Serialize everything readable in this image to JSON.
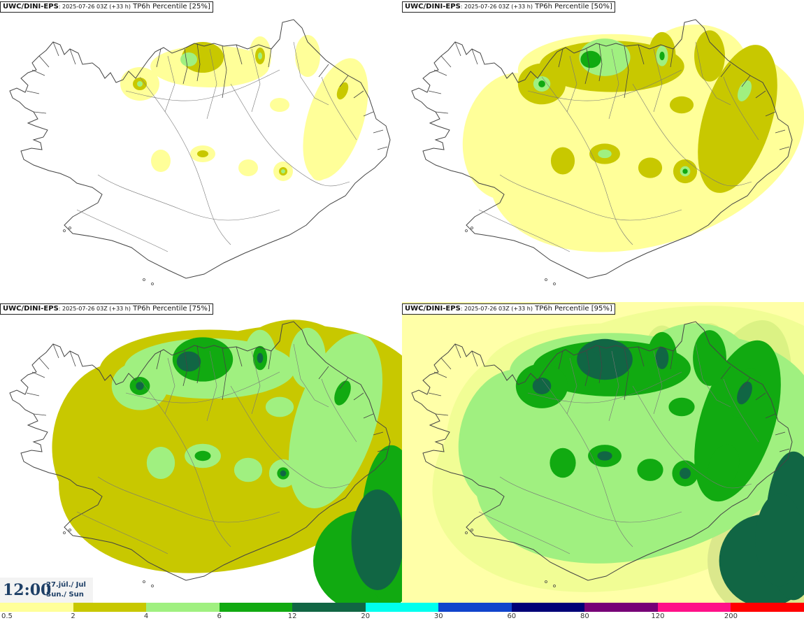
{
  "panels": [
    {
      "model": "UWC/DINI-EPS",
      "run": ": 2025-07-26 03Z (+33 h)",
      "field": " TP6h Percentile [25%]",
      "intensity": 0
    },
    {
      "model": "UWC/DINI-EPS",
      "run": ": 2025-07-26 03Z (+33 h)",
      "field": " TP6h Percentile [50%]",
      "intensity": 1
    },
    {
      "model": "UWC/DINI-EPS",
      "run": ": 2025-07-26 03Z (+33 h)",
      "field": " TP6h Percentile [75%]",
      "intensity": 2
    },
    {
      "model": "UWC/DINI-EPS",
      "run": ": 2025-07-26 03Z (+33 h)",
      "field": " TP6h Percentile [95%]",
      "intensity": 3
    }
  ],
  "valid_time": {
    "time": "12:00",
    "date_line1": "27.júl./ Jul",
    "date_line2": "Sun./ Sun"
  },
  "legend": {
    "ticks": [
      "0.5",
      "2",
      "4",
      "6",
      "12",
      "20",
      "30",
      "60",
      "80",
      "120",
      "200"
    ],
    "colors": [
      "#ffff99",
      "#c8c800",
      "#a0f080",
      "#11aa11",
      "#116644",
      "#00ffee",
      "#1144cc",
      "#000077",
      "#770077",
      "#ff1188",
      "#ff0000"
    ]
  },
  "colors": {
    "coast": "#444444",
    "light": "#ffff99",
    "olive": "#c8c800",
    "lightgreen": "#a0f080",
    "green": "#11aa11",
    "darkgreen": "#116644"
  }
}
